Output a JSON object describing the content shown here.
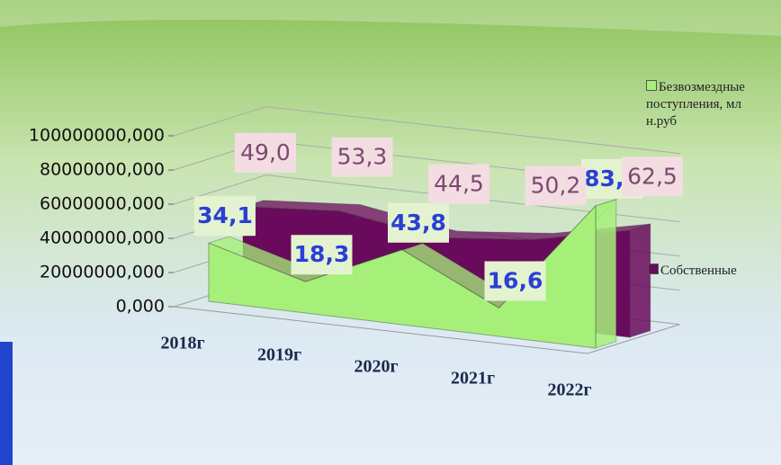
{
  "chart_data": {
    "type": "area3d",
    "categories": [
      "2018г",
      "2019г",
      "2020г",
      "2021г",
      "2022г"
    ],
    "series": [
      {
        "name": "Безвозмездные поступления, млн.руб",
        "color": "#a6f07a",
        "values": [
          34100000,
          18300000,
          43800000,
          16600000,
          83200000
        ],
        "value_labels": [
          "34,1",
          "18,3",
          "43,8",
          "16,6",
          "83,2"
        ]
      },
      {
        "name": "Собственные",
        "color": "#6a0a5c",
        "values": [
          49000000,
          53300000,
          44500000,
          50200000,
          62500000
        ],
        "value_labels": [
          "49,0",
          "53,3",
          "44,5",
          "50,2",
          "62,5"
        ]
      }
    ],
    "ylim": [
      0,
      100000000
    ],
    "yticks": [
      {
        "value": 0,
        "label": "0,000"
      },
      {
        "value": 20000000,
        "label": "20000000,000"
      },
      {
        "value": 40000000,
        "label": "40000000,000"
      },
      {
        "value": 60000000,
        "label": "60000000,000"
      },
      {
        "value": 80000000,
        "label": "80000000,000"
      },
      {
        "value": 100000000,
        "label": "100000000,000"
      }
    ],
    "grid": true
  }
}
